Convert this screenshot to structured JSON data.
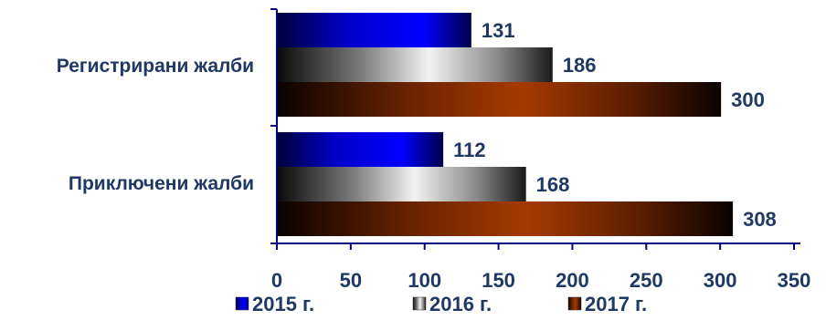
{
  "chart_data": {
    "type": "bar",
    "orientation": "horizontal",
    "categories": [
      "Регистрирани жалби",
      "Приключени жалби"
    ],
    "series": [
      {
        "name": "2015 г.",
        "values": [
          131,
          112
        ],
        "color": "#0000ff"
      },
      {
        "name": "2016 г.",
        "values": [
          186,
          168
        ],
        "color": "#b0b0b0"
      },
      {
        "name": "2017 г.",
        "values": [
          300,
          308
        ],
        "color": "#993300"
      }
    ],
    "xlim": [
      0,
      350
    ],
    "xticks": [
      "0",
      "50",
      "100",
      "150",
      "200",
      "250",
      "300",
      "350"
    ],
    "data_labels": true,
    "grid": false,
    "legend_position": "bottom",
    "title": "",
    "xlabel": "",
    "ylabel": ""
  }
}
